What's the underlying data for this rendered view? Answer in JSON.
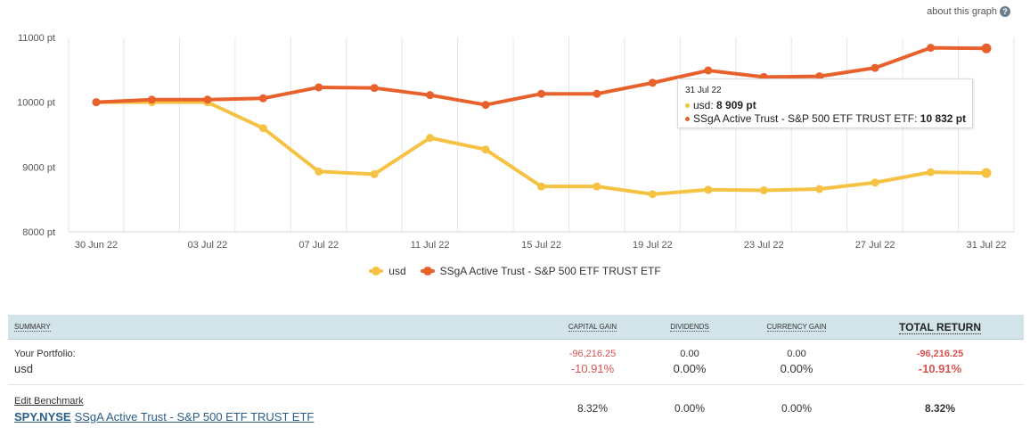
{
  "about_link": "about this graph",
  "help_glyph": "?",
  "chart_data": {
    "type": "line",
    "x": [
      "30 Jun 22",
      "01 Jul 22",
      "03 Jul 22",
      "05 Jul 22",
      "07 Jul 22",
      "09 Jul 22",
      "11 Jul 22",
      "13 Jul 22",
      "15 Jul 22",
      "17 Jul 22",
      "19 Jul 22",
      "21 Jul 22",
      "23 Jul 22",
      "25 Jul 22",
      "27 Jul 22",
      "29 Jul 22",
      "31 Jul 22"
    ],
    "x_tick_labels": [
      "30 Jun 22",
      "03 Jul 22",
      "07 Jul 22",
      "11 Jul 22",
      "15 Jul 22",
      "19 Jul 22",
      "23 Jul 22",
      "27 Jul 22",
      "31 Jul 22"
    ],
    "y_tick_labels": [
      "11000 pt",
      "10000 pt",
      "9000 pt",
      "8000 pt"
    ],
    "y_ticks": [
      11000,
      10000,
      9000,
      8000
    ],
    "ylim": [
      8000,
      11000
    ],
    "grid": true,
    "legend_position": "bottom-center",
    "series": [
      {
        "name": "usd",
        "color": "#f5c244",
        "values": [
          10000,
          10000,
          10000,
          9600,
          8930,
          8890,
          9450,
          9270,
          8700,
          8700,
          8580,
          8650,
          8640,
          8660,
          8760,
          8920,
          8909
        ]
      },
      {
        "name": "SSgA Active Trust - S&P 500 ETF TRUST ETF",
        "color": "#e8612c",
        "values": [
          10000,
          10040,
          10040,
          10060,
          10230,
          10220,
          10110,
          9960,
          10130,
          10130,
          10300,
          10490,
          10390,
          10400,
          10530,
          10840,
          10832
        ]
      }
    ]
  },
  "tooltip": {
    "date": "31 Jul 22",
    "rows": [
      {
        "label": "usd: ",
        "value": "8 909 pt",
        "color": "#f5c244"
      },
      {
        "label": "SSgA Active Trust - S&P 500 ETF TRUST ETF: ",
        "value": "10 832 pt",
        "color": "#e8612c"
      }
    ]
  },
  "summary": {
    "headers": {
      "summary": "Summary",
      "capital_gain": "Capital Gain",
      "dividends": "Dividends",
      "currency_gain": "Currency Gain",
      "total_return": "Total Return"
    },
    "portfolio": {
      "label": "Your Portfolio:",
      "name": "usd",
      "capital_gain_amount": "-96,216.25",
      "capital_gain_pct": "-10.91%",
      "dividends_amount": "0.00",
      "dividends_pct": "0.00%",
      "currency_gain_amount": "0.00",
      "currency_gain_pct": "0.00%",
      "total_return_amount": "-96,216.25",
      "total_return_pct": "-10.91%"
    },
    "benchmark": {
      "edit_label": "Edit Benchmark",
      "ticker": "SPY.NYSE",
      "name": "SSgA Active Trust - S&P 500 ETF TRUST ETF",
      "capital_gain_pct": "8.32%",
      "dividends_pct": "0.00%",
      "currency_gain_pct": "0.00%",
      "total_return_pct": "8.32%"
    }
  }
}
